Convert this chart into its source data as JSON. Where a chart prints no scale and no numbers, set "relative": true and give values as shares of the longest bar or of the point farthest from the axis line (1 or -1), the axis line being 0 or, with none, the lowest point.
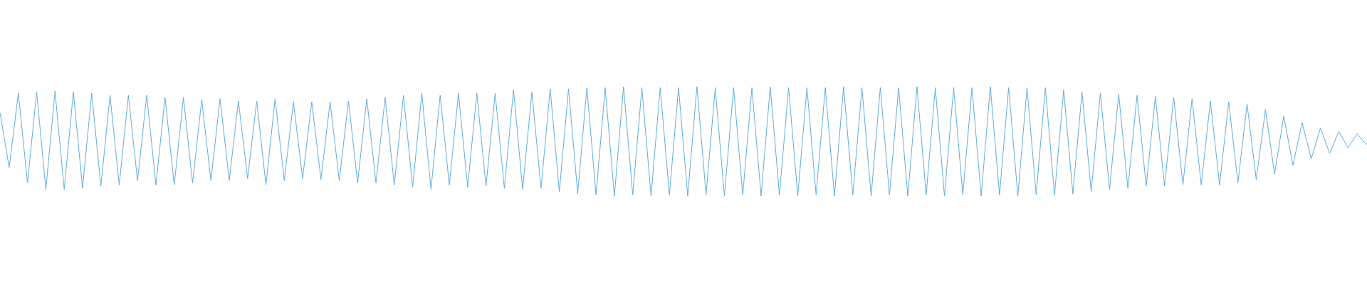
{
  "chart_data": {
    "type": "line",
    "relative": true,
    "line_style": "solid",
    "marker": "none",
    "categories": [
      null,
      null,
      null,
      null,
      null,
      null,
      null,
      null,
      null,
      null,
      null,
      null,
      null,
      null,
      null,
      null,
      null,
      null,
      null,
      null,
      null,
      null,
      null,
      null,
      null,
      null,
      null,
      null,
      null,
      null,
      null,
      null,
      null,
      null,
      null,
      null,
      null,
      null,
      null,
      null,
      null,
      null,
      null,
      null,
      null,
      null,
      null,
      null,
      null,
      null,
      null,
      null,
      null,
      null,
      null,
      null,
      null,
      null,
      null,
      null,
      null,
      null,
      null,
      null,
      null,
      null,
      null,
      null,
      null,
      null,
      null,
      null,
      null,
      null,
      null,
      null,
      null,
      null,
      null,
      null,
      null,
      null,
      null,
      null,
      null,
      null,
      null,
      null,
      null,
      null,
      null,
      null,
      null,
      null,
      null,
      null,
      null,
      null,
      null,
      null,
      null,
      null,
      null,
      null,
      null,
      null,
      null,
      null,
      null,
      null,
      null,
      null,
      null,
      null,
      null,
      null,
      null,
      null,
      null,
      null,
      null,
      null,
      null,
      null,
      null,
      null,
      null,
      null,
      null,
      null,
      null,
      null,
      null,
      null,
      null,
      null,
      null,
      null,
      null,
      null,
      null,
      null,
      null,
      null,
      null,
      null,
      null,
      null,
      null,
      null
    ],
    "series": [
      {
        "color": "#5dade2",
        "values": [
          0.76,
          0.26,
          0.94,
          0.12,
          0.95,
          0.06,
          0.96,
          0.06,
          0.95,
          0.07,
          0.94,
          0.09,
          0.92,
          0.1,
          0.92,
          0.14,
          0.92,
          0.1,
          0.9,
          0.1,
          0.9,
          0.12,
          0.88,
          0.14,
          0.89,
          0.14,
          0.87,
          0.16,
          0.87,
          0.1,
          0.89,
          0.14,
          0.86,
          0.16,
          0.86,
          0.15,
          0.86,
          0.14,
          0.87,
          0.12,
          0.89,
          0.12,
          0.9,
          0.1,
          0.92,
          0.08,
          0.94,
          0.06,
          0.92,
          0.1,
          0.94,
          0.08,
          0.94,
          0.09,
          0.94,
          0.07,
          0.97,
          0.06,
          0.95,
          0.07,
          0.98,
          0.04,
          0.98,
          0.02,
          0.99,
          0.01,
          0.99,
          0,
          1,
          0.01,
          0.99,
          0,
          0.99,
          0.01,
          0.99,
          0,
          1,
          0.01,
          0.99,
          0,
          0.99,
          0.01,
          0.99,
          0,
          1,
          0.01,
          0.99,
          0,
          0.99,
          0.01,
          0.99,
          0,
          1,
          0.01,
          0.99,
          0,
          0.99,
          0.01,
          0.99,
          0,
          1,
          0.01,
          0.99,
          0,
          0.99,
          0.01,
          0.99,
          0,
          1,
          0.01,
          0.99,
          0,
          0.99,
          0.01,
          0.99,
          0.01,
          0.97,
          0.02,
          0.95,
          0.04,
          0.94,
          0.06,
          0.93,
          0.07,
          0.92,
          0.09,
          0.91,
          0.09,
          0.9,
          0.1,
          0.89,
          0.1,
          0.87,
          0.1,
          0.86,
          0.12,
          0.84,
          0.15,
          0.79,
          0.2,
          0.73,
          0.28,
          0.67,
          0.34,
          0.62,
          0.39,
          0.59,
          0.44,
          0.57,
          0.47
        ]
      }
    ]
  }
}
